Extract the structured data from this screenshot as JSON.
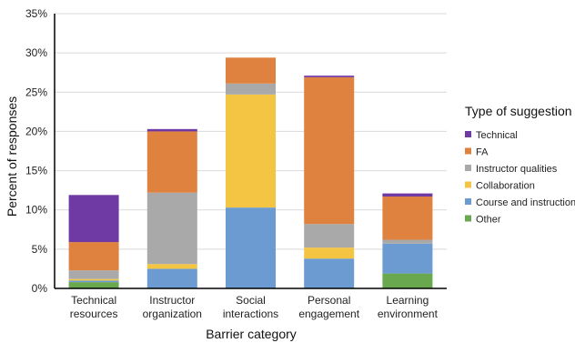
{
  "chart_data": {
    "type": "bar",
    "stacked": true,
    "categories": [
      [
        "Technical",
        "resources"
      ],
      [
        "Instructor",
        "organization"
      ],
      [
        "Social",
        "interactions"
      ],
      [
        "Personal",
        "engagement"
      ],
      [
        "Learning",
        "environment"
      ]
    ],
    "xlabel": "Barrier category",
    "ylabel": "Percent of responses",
    "ylim": [
      0,
      35
    ],
    "yticks": [
      "0%",
      "5%",
      "10%",
      "15%",
      "20%",
      "25%",
      "30%",
      "35%"
    ],
    "grid": true,
    "legend_title": "Type of suggestion",
    "legend_position": "right",
    "series": [
      {
        "name": "Other",
        "color": "#6aa84f",
        "values": [
          0.8,
          0,
          0,
          0,
          1.9
        ]
      },
      {
        "name": "Course and instruction",
        "color": "#6b9bd1",
        "values": [
          0.2,
          2.5,
          10.3,
          3.8,
          3.8
        ]
      },
      {
        "name": "Collaboration",
        "color": "#f4c542",
        "values": [
          0.2,
          0.6,
          14.4,
          1.4,
          0
        ]
      },
      {
        "name": "Instructor qualities",
        "color": "#a9a9a9",
        "values": [
          1.1,
          9.1,
          1.4,
          3.0,
          0.5
        ]
      },
      {
        "name": "FA",
        "color": "#e0823f",
        "values": [
          3.6,
          7.8,
          3.3,
          18.7,
          5.5
        ]
      },
      {
        "name": "Technical",
        "color": "#6f3aa3",
        "values": [
          6.0,
          0.3,
          0,
          0.2,
          0.4
        ]
      }
    ],
    "legend_order": [
      "Technical",
      "FA",
      "Instructor qualities",
      "Collaboration",
      "Course and instruction",
      "Other"
    ]
  }
}
